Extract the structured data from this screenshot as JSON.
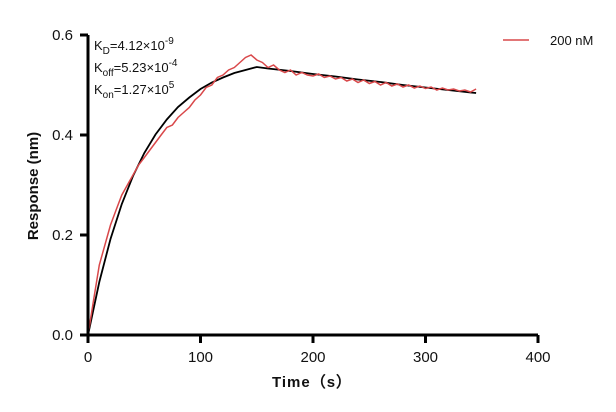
{
  "chart_data": {
    "type": "line",
    "title": "",
    "xlabel": "Time（s）",
    "ylabel": "Response (nm)",
    "xlim": [
      0,
      400
    ],
    "ylim": [
      0,
      0.6
    ],
    "xticks": [
      "0",
      "100",
      "200",
      "300",
      "400"
    ],
    "yticks": [
      "0.0",
      "0.2",
      "0.4",
      "0.6"
    ],
    "grid": false,
    "legend_position": "top-right",
    "annotations": [
      {
        "base": "K",
        "sub": "D",
        "text": "=4.12×10",
        "sup": "-9"
      },
      {
        "base": "K",
        "sub": "off",
        "text": "=5.23×10",
        "sup": "-4"
      },
      {
        "base": "K",
        "sub": "on",
        "text": "=1.27×10",
        "sup": "5"
      }
    ],
    "series": [
      {
        "name": "200 nM",
        "color": "#d9484a",
        "x": [
          0,
          5,
          10,
          15,
          20,
          25,
          30,
          35,
          40,
          45,
          50,
          55,
          60,
          65,
          70,
          75,
          80,
          85,
          90,
          95,
          100,
          105,
          110,
          115,
          120,
          125,
          130,
          135,
          140,
          145,
          150,
          155,
          160,
          165,
          170,
          175,
          180,
          185,
          190,
          195,
          200,
          205,
          210,
          215,
          220,
          225,
          230,
          235,
          240,
          245,
          250,
          255,
          260,
          265,
          270,
          275,
          280,
          285,
          290,
          295,
          300,
          305,
          310,
          315,
          320,
          325,
          330,
          335,
          340,
          345
        ],
        "y": [
          0,
          0.07,
          0.14,
          0.18,
          0.22,
          0.25,
          0.28,
          0.3,
          0.32,
          0.34,
          0.355,
          0.37,
          0.385,
          0.4,
          0.415,
          0.42,
          0.435,
          0.445,
          0.455,
          0.47,
          0.48,
          0.495,
          0.5,
          0.515,
          0.52,
          0.53,
          0.535,
          0.545,
          0.555,
          0.56,
          0.55,
          0.545,
          0.535,
          0.54,
          0.53,
          0.525,
          0.53,
          0.52,
          0.525,
          0.52,
          0.518,
          0.522,
          0.515,
          0.518,
          0.512,
          0.515,
          0.508,
          0.512,
          0.505,
          0.51,
          0.503,
          0.507,
          0.5,
          0.505,
          0.498,
          0.502,
          0.496,
          0.5,
          0.494,
          0.498,
          0.493,
          0.496,
          0.49,
          0.494,
          0.49,
          0.492,
          0.488,
          0.49,
          0.486,
          0.492
        ]
      },
      {
        "color": "#000000",
        "x": [
          0,
          10,
          20,
          30,
          40,
          50,
          60,
          70,
          80,
          90,
          100,
          110,
          120,
          130,
          140,
          150,
          160,
          180,
          200,
          220,
          240,
          260,
          280,
          300,
          320,
          340,
          345
        ],
        "y": [
          0,
          0.106,
          0.192,
          0.262,
          0.318,
          0.364,
          0.401,
          0.431,
          0.456,
          0.475,
          0.492,
          0.505,
          0.515,
          0.524,
          0.53,
          0.536,
          0.533,
          0.528,
          0.522,
          0.517,
          0.511,
          0.506,
          0.5,
          0.495,
          0.49,
          0.485,
          0.484
        ]
      }
    ]
  }
}
